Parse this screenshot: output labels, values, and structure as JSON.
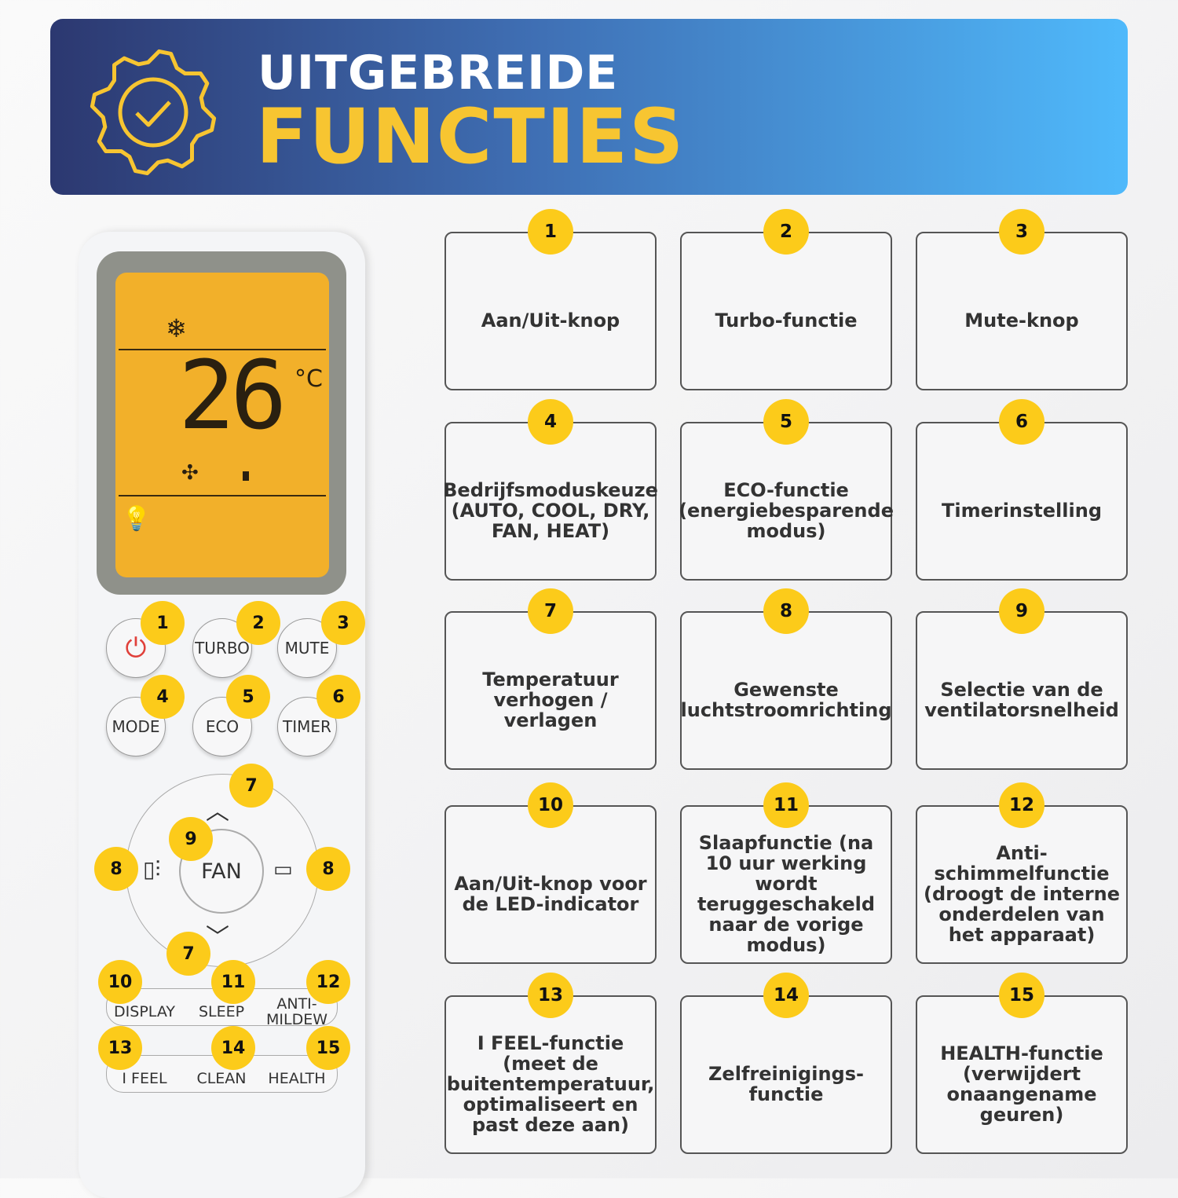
{
  "header": {
    "title_line1": "UITGEBREIDE",
    "title_line2": "FUNCTIES",
    "icon": "gear-check-icon"
  },
  "colors": {
    "banner_start": "#2c3870",
    "banner_end": "#4fb9fb",
    "accent_yellow": "#f7c531",
    "badge": "#fccb1a",
    "lcd": "#f2b02a"
  },
  "remote": {
    "display": {
      "temperature": "26",
      "unit": "°C",
      "icons": [
        "snowflake-icon",
        "fan-icon",
        "bulb-icon"
      ]
    },
    "buttons": {
      "turbo": "TURBO",
      "mute": "MUTE",
      "mode": "MODE",
      "eco": "ECO",
      "timer": "TIMER",
      "fan": "FAN",
      "display": "DISPLAY",
      "sleep": "SLEEP",
      "anti_mildew": "ANTI-\nMILDEW",
      "ifeel": "I FEEL",
      "clean": "CLEAN",
      "health": "HEALTH"
    },
    "badges": [
      "1",
      "2",
      "3",
      "4",
      "5",
      "6",
      "7",
      "9",
      "8",
      "8",
      "7",
      "10",
      "11",
      "12",
      "13",
      "14",
      "15"
    ]
  },
  "features": [
    {
      "num": "1",
      "label": "Aan/Uit-knop"
    },
    {
      "num": "2",
      "label": "Turbo-functie"
    },
    {
      "num": "3",
      "label": "Mute-knop"
    },
    {
      "num": "4",
      "label": "Bedrijfsmoduskeuze (AUTO, COOL, DRY, FAN, HEAT)"
    },
    {
      "num": "5",
      "label": "ECO-functie (energiebesparende modus)"
    },
    {
      "num": "6",
      "label": "Timerinstelling"
    },
    {
      "num": "7",
      "label": "Temperatuur verhogen / verlagen"
    },
    {
      "num": "8",
      "label": "Gewenste luchtstroomrichting"
    },
    {
      "num": "9",
      "label": "Selectie van de ventilatorsnelheid"
    },
    {
      "num": "10",
      "label": "Aan/Uit-knop voor de LED-indicator"
    },
    {
      "num": "11",
      "label": "Slaapfunctie (na 10 uur werking wordt teruggeschakeld naar de vorige modus)"
    },
    {
      "num": "12",
      "label": "Anti-schimmelfunctie (droogt de interne onderdelen van het apparaat)"
    },
    {
      "num": "13",
      "label": "I FEEL-functie (meet de buitentemperatuur, optimaliseert en past deze aan)"
    },
    {
      "num": "14",
      "label": "Zelfreinigings-functie"
    },
    {
      "num": "15",
      "label": "HEALTH-functie (verwijdert onaangename geuren)"
    }
  ]
}
